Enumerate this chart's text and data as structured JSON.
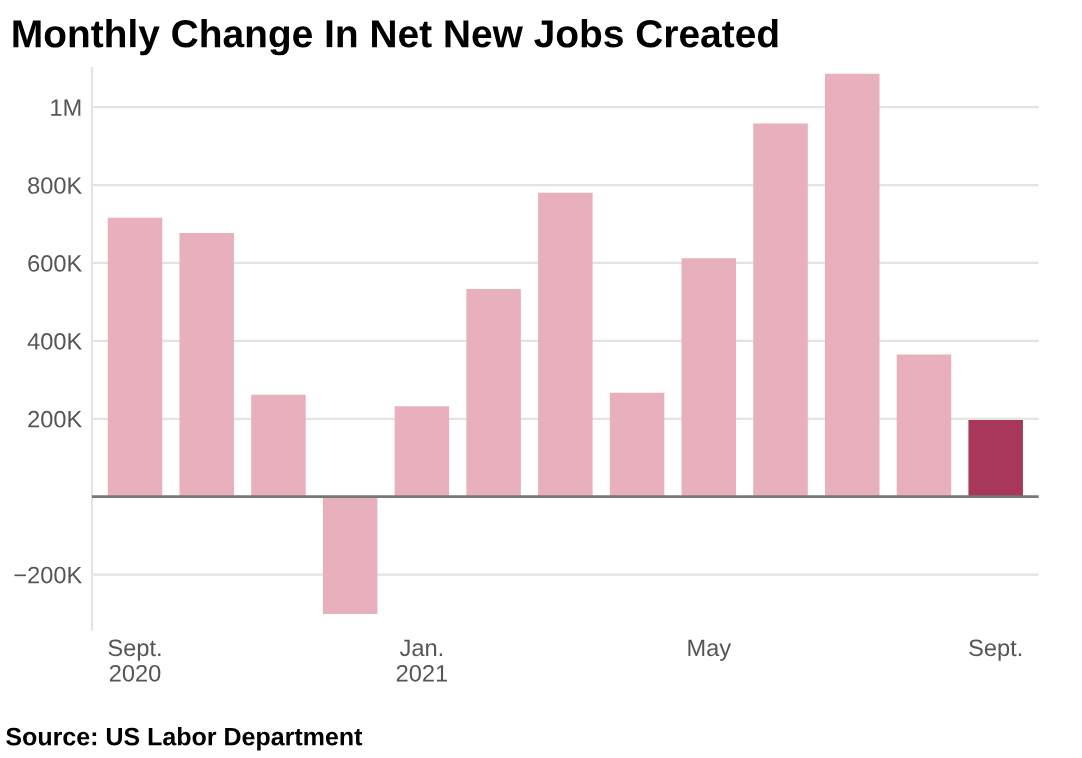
{
  "chart_data": {
    "type": "bar",
    "title": "Monthly Change In Net New Jobs Created",
    "categories": [
      "Sept.\n2020",
      null,
      null,
      null,
      "Jan.\n2021",
      null,
      null,
      null,
      "May",
      null,
      null,
      null,
      "Sept."
    ],
    "values": [
      716000,
      677000,
      262000,
      -301000,
      232000,
      533000,
      780000,
      267000,
      612000,
      958000,
      1086000,
      365000,
      197000
    ],
    "colors": [
      "#e8afbd",
      "#e8afbd",
      "#e8afbd",
      "#e8afbd",
      "#e8afbd",
      "#e8afbd",
      "#e8afbd",
      "#e8afbd",
      "#e8afbd",
      "#e8afbd",
      "#e8afbd",
      "#e8afbd",
      "#a8375a"
    ],
    "ylim": [
      -340000,
      1100000
    ],
    "yticks": [
      {
        "value": -200000,
        "label": "−200K"
      },
      {
        "value": 200000,
        "label": "200K"
      },
      {
        "value": 400000,
        "label": "400K"
      },
      {
        "value": 600000,
        "label": "600K"
      },
      {
        "value": 800000,
        "label": "800K"
      },
      {
        "value": 1000000,
        "label": "1M"
      }
    ],
    "ref_lines": [
      {
        "axis": "y",
        "value": 0,
        "label": null,
        "color": "#777777"
      }
    ],
    "grid": "y",
    "annotations": [
      "Source: US Labor Department"
    ]
  }
}
